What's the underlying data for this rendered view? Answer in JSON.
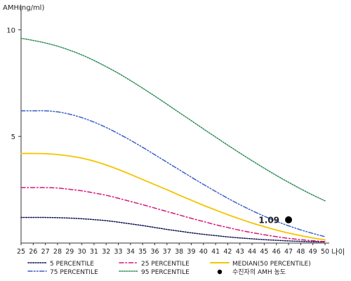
{
  "chart_data": {
    "type": "line",
    "title": "",
    "ylabel": "AMH(ng/ml)",
    "xlabel": "나이",
    "x": [
      25,
      26,
      27,
      28,
      29,
      30,
      31,
      32,
      33,
      34,
      35,
      36,
      37,
      38,
      39,
      40,
      41,
      42,
      43,
      44,
      45,
      46,
      47,
      48,
      49,
      50
    ],
    "ylim": [
      0,
      11
    ],
    "xlim": [
      25,
      50
    ],
    "yticks": [
      5,
      10
    ],
    "xticks": [
      "25",
      "26",
      "27",
      "28",
      "29",
      "30",
      "31",
      "32",
      "33",
      "34",
      "35",
      "36",
      "37",
      "38",
      "39",
      "40",
      "41",
      "42",
      "43",
      "44",
      "45",
      "46",
      "47",
      "48",
      "49",
      "50"
    ],
    "grid": false,
    "legend_position": "bottom",
    "series": [
      {
        "name": "5 PERCENTILE",
        "color": "#0a1050",
        "style": "dotted",
        "values": [
          1.2,
          1.2,
          1.2,
          1.19,
          1.17,
          1.14,
          1.1,
          1.05,
          0.98,
          0.9,
          0.82,
          0.73,
          0.64,
          0.56,
          0.48,
          0.41,
          0.35,
          0.29,
          0.24,
          0.2,
          0.16,
          0.13,
          0.1,
          0.08,
          0.06,
          0.05
        ]
      },
      {
        "name": "25 PERCENTILE",
        "color": "#d6177a",
        "style": "dashdot",
        "values": [
          2.6,
          2.6,
          2.6,
          2.58,
          2.52,
          2.45,
          2.35,
          2.24,
          2.1,
          1.95,
          1.8,
          1.64,
          1.48,
          1.32,
          1.16,
          1.01,
          0.86,
          0.73,
          0.6,
          0.49,
          0.39,
          0.3,
          0.22,
          0.16,
          0.11,
          0.07
        ]
      },
      {
        "name": "MEDIAN(50 PERCENTILE)",
        "color": "#f5c400",
        "style": "solid",
        "values": [
          4.2,
          4.2,
          4.19,
          4.15,
          4.08,
          3.98,
          3.84,
          3.66,
          3.45,
          3.22,
          2.98,
          2.74,
          2.5,
          2.25,
          2.01,
          1.77,
          1.55,
          1.33,
          1.13,
          0.94,
          0.77,
          0.61,
          0.47,
          0.35,
          0.24,
          0.15
        ]
      },
      {
        "name": "75 PERCENTILE",
        "color": "#3a5fc8",
        "style": "dashdotdot",
        "values": [
          6.2,
          6.2,
          6.2,
          6.15,
          6.04,
          5.88,
          5.67,
          5.42,
          5.13,
          4.82,
          4.49,
          4.14,
          3.79,
          3.44,
          3.09,
          2.75,
          2.42,
          2.1,
          1.8,
          1.52,
          1.26,
          1.02,
          0.81,
          0.62,
          0.45,
          0.3
        ]
      },
      {
        "name": "95 PERCENTILE",
        "color": "#2e8b57",
        "style": "dotted",
        "values": [
          9.6,
          9.5,
          9.38,
          9.23,
          9.04,
          8.82,
          8.56,
          8.27,
          7.96,
          7.62,
          7.26,
          6.89,
          6.51,
          6.12,
          5.74,
          5.35,
          4.97,
          4.59,
          4.22,
          3.86,
          3.51,
          3.17,
          2.85,
          2.54,
          2.25,
          1.98
        ]
      }
    ],
    "marker": {
      "name": "수진자의 AMH 농도",
      "x": 47,
      "y": 1.09,
      "label": "1.09",
      "color": "#000000"
    }
  }
}
